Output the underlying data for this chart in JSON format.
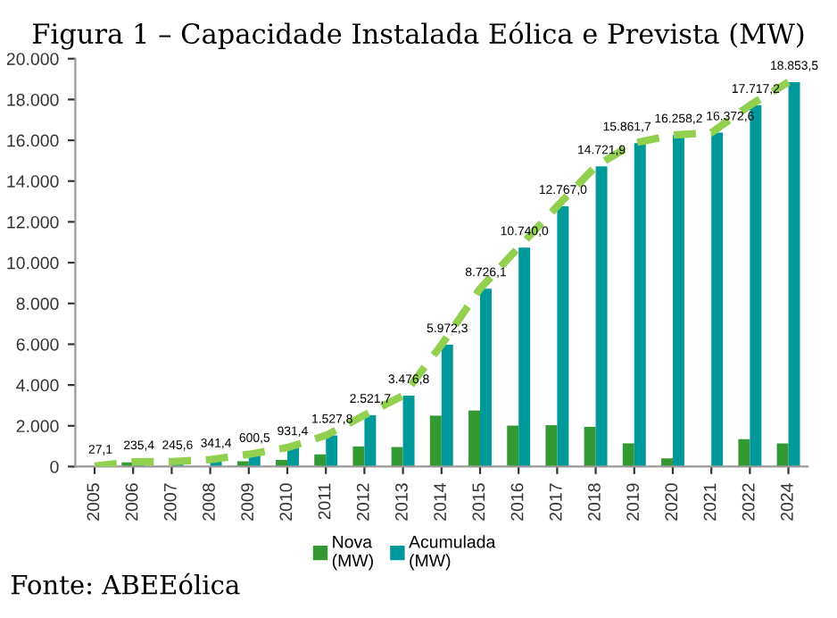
{
  "chart_data": {
    "type": "bar",
    "title": "Figura 1 – Capacidade Instalada Eólica e Prevista (MW)",
    "categories": [
      "2005",
      "2006",
      "2007",
      "2008",
      "2009",
      "2010",
      "2011",
      "2012",
      "2013",
      "2014",
      "2015",
      "2016",
      "2017",
      "2018",
      "2019",
      "2020",
      "2021",
      "2022",
      "2024"
    ],
    "series": [
      {
        "name": "Nova\n(MW)",
        "color": "#339933",
        "values": [
          null,
          210,
          10,
          null,
          260,
          330,
          600,
          990,
          960,
          2500,
          2750,
          2010,
          2030,
          1950,
          1140,
          400,
          null,
          1340,
          1140
        ]
      },
      {
        "name": "Acumulada\n(MW)",
        "color": "#009999",
        "values": [
          27.1,
          235.4,
          245.6,
          341.4,
          600.5,
          931.4,
          1527.8,
          2521.7,
          3476.8,
          5972.3,
          8726.1,
          10740.0,
          12767.0,
          14721.9,
          15861.7,
          16258.2,
          16372.6,
          17717.2,
          18853.5
        ],
        "value_labels": [
          "27,1",
          "235,4",
          "245,6",
          "341,4",
          "600,5",
          "931,4",
          "1.527,8",
          "2.521,7",
          "3.476,8",
          "5.972,3",
          "8.726,1",
          "10.740,0",
          "12.767,0",
          "14.721,9",
          "15.861,7",
          "16.258,2",
          "16.372,6",
          "17.717,2",
          "18.853,5"
        ]
      },
      {
        "type": "line",
        "color": "#92d050",
        "line_style": "dashed",
        "values": [
          27.1,
          235.4,
          245.6,
          341.4,
          600.5,
          931.4,
          1527.8,
          2521.7,
          3476.8,
          5972.3,
          8726.1,
          10740.0,
          12767.0,
          14721.9,
          15861.7,
          16258.2,
          16372.6,
          17717.2,
          18853.5
        ]
      }
    ],
    "ylim": [
      0,
      20000
    ],
    "yticks": [
      0,
      {
        "value": 2000,
        "label": "2.000"
      },
      {
        "value": 4000,
        "label": "4.000"
      },
      {
        "value": 6000,
        "label": "6.000"
      },
      {
        "value": 8000,
        "label": "8.000"
      },
      {
        "value": 10000,
        "label": "10.000"
      },
      {
        "value": 12000,
        "label": "12.000"
      },
      {
        "value": 14000,
        "label": "14.000"
      },
      {
        "value": 16000,
        "label": "16.000"
      },
      {
        "value": 18000,
        "label": "18.000"
      },
      {
        "value": 20000,
        "label": "20.000"
      }
    ],
    "legend": "bottom",
    "grid": false,
    "marker": "none",
    "annotations": [
      "Fonte: ABEEólica"
    ]
  }
}
